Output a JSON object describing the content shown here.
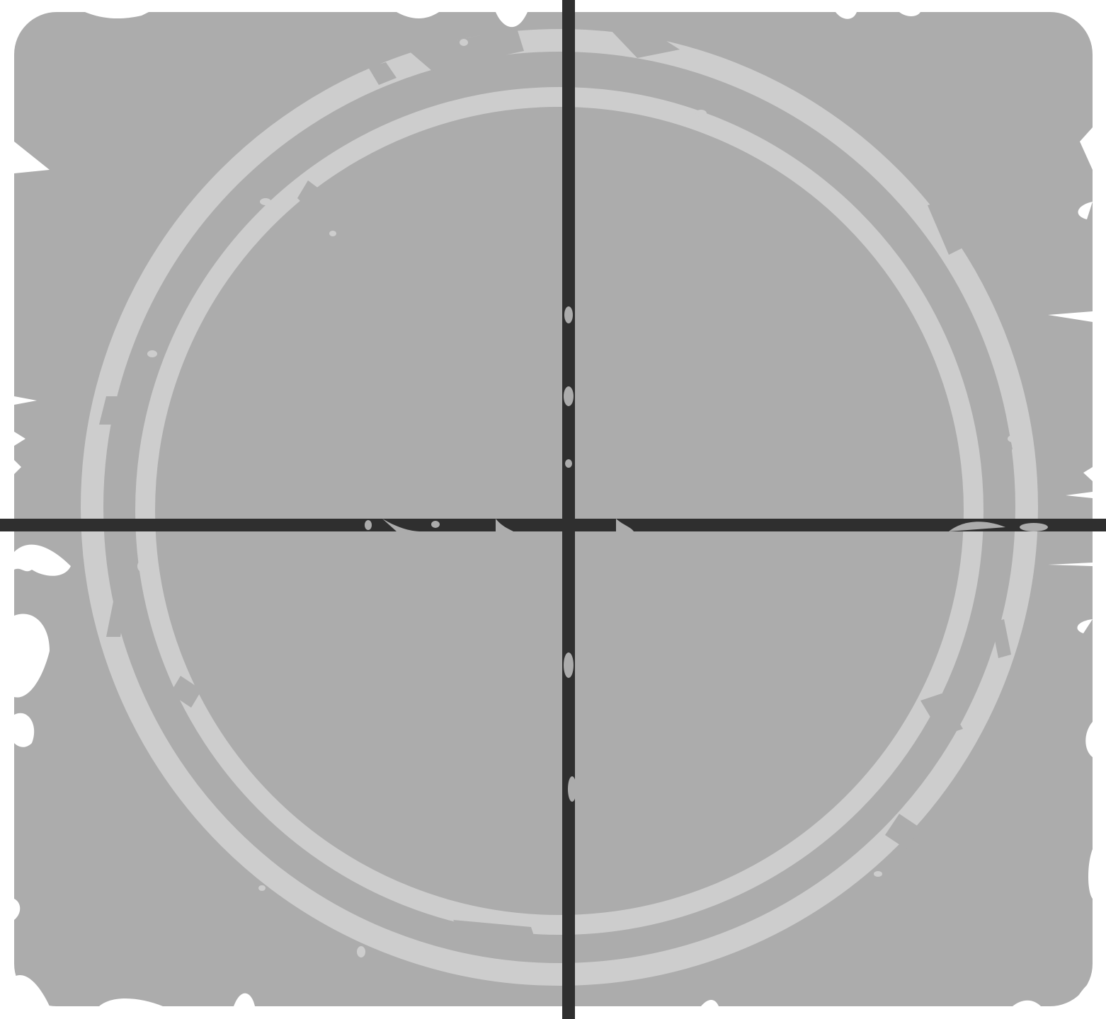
{
  "canvas": {
    "background_color": "#ffffff",
    "panel_color": "#acacac",
    "ring_color": "#cdcdcd",
    "axis_color": "#2f2f2f",
    "speck_color": "#ffffff"
  },
  "illustration": {
    "type": "grunge-crosshair-stamp",
    "elements": [
      "rounded-square-panel",
      "outer-ring",
      "inner-ring",
      "horizontal-axis-line",
      "vertical-axis-line"
    ]
  }
}
